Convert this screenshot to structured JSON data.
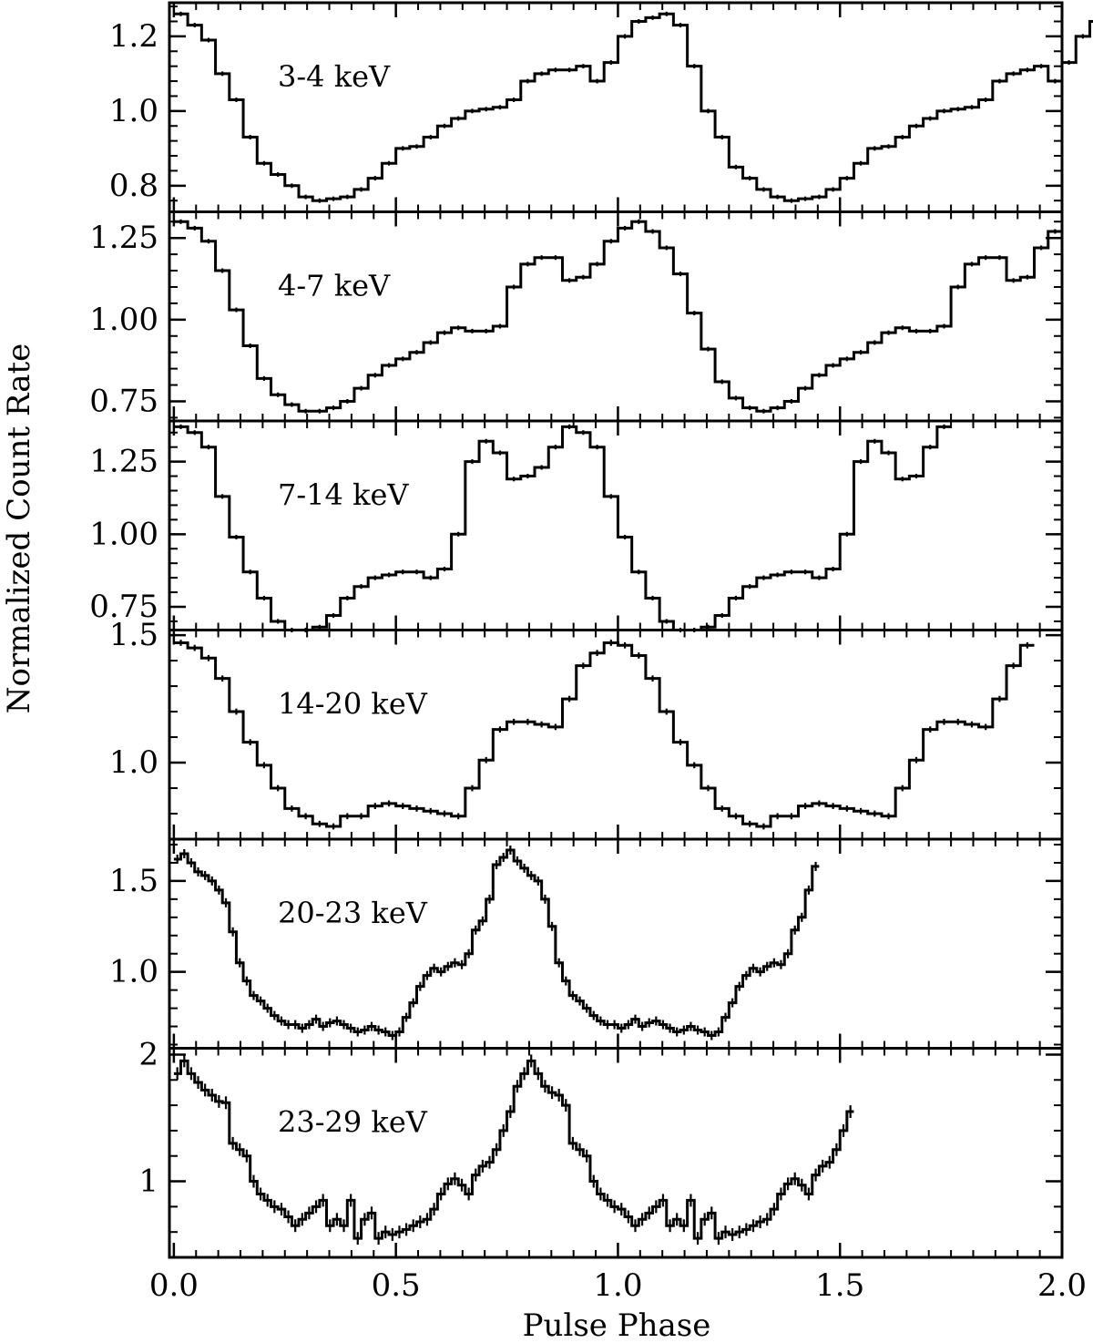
{
  "chart_data": {
    "type": "line",
    "style": "step-histogram with error bars",
    "xlabel": "Pulse Phase",
    "ylabel": "Normalized Count Rate",
    "xlim": [
      -0.01,
      2.0
    ],
    "xticks": [
      0.0,
      0.5,
      1.0,
      1.5,
      2.0
    ],
    "xtick_labels": [
      "0.0",
      "0.5",
      "1.0",
      "1.5",
      "2.0"
    ],
    "shared_x": true,
    "grid": false,
    "panels": [
      {
        "label": "3-4 keV",
        "ylim": [
          0.73,
          1.29
        ],
        "yticks": [
          0.8,
          1.0,
          1.2
        ],
        "ytick_labels": [
          "0.8",
          "1.0",
          "1.2"
        ],
        "bin_width": 0.03125,
        "values": [
          1.26,
          1.23,
          1.19,
          1.1,
          1.03,
          0.93,
          0.86,
          0.83,
          0.8,
          0.77,
          0.76,
          0.765,
          0.77,
          0.79,
          0.82,
          0.86,
          0.9,
          0.905,
          0.93,
          0.96,
          0.98,
          1.0,
          1.005,
          1.01,
          1.03,
          1.08,
          1.1,
          1.11,
          1.11,
          1.12,
          1.08,
          1.13,
          1.2,
          1.24,
          1.25,
          1.26,
          1.23,
          1.12,
          1.0,
          0.93,
          0.85,
          0.82,
          0.79,
          0.77,
          0.76,
          0.765,
          0.77,
          0.79,
          0.82,
          0.86,
          0.9,
          0.905,
          0.93,
          0.96,
          0.98,
          1.0,
          1.005,
          1.01,
          1.03,
          1.08,
          1.1,
          1.11,
          1.12,
          1.08,
          1.13,
          1.2,
          1.24,
          1.25
        ],
        "errors": 0.006
      },
      {
        "label": "4-7 keV",
        "ylim": [
          0.69,
          1.33
        ],
        "yticks": [
          0.75,
          1.0,
          1.25
        ],
        "ytick_labels": [
          "0.75",
          "1.00",
          "1.25"
        ],
        "bin_width": 0.03125,
        "values": [
          1.3,
          1.28,
          1.24,
          1.15,
          1.03,
          0.92,
          0.82,
          0.77,
          0.74,
          0.72,
          0.72,
          0.73,
          0.75,
          0.79,
          0.83,
          0.86,
          0.88,
          0.9,
          0.93,
          0.96,
          0.975,
          0.965,
          0.965,
          0.98,
          1.1,
          1.17,
          1.19,
          1.19,
          1.12,
          1.13,
          1.17,
          1.24,
          1.28,
          1.3,
          1.27,
          1.22,
          1.14,
          1.02,
          0.91,
          0.81,
          0.76,
          0.73,
          0.72,
          0.73,
          0.75,
          0.79,
          0.83,
          0.86,
          0.88,
          0.9,
          0.93,
          0.96,
          0.975,
          0.965,
          0.965,
          0.98,
          1.1,
          1.17,
          1.19,
          1.19,
          1.12,
          1.13,
          1.22,
          1.27
        ],
        "errors": 0.007
      },
      {
        "label": "7-14 keV",
        "ylim": [
          0.67,
          1.39
        ],
        "yticks": [
          0.75,
          1.0,
          1.25
        ],
        "ytick_labels": [
          "0.75",
          "1.00",
          "1.25"
        ],
        "bin_width": 0.03125,
        "values": [
          1.37,
          1.35,
          1.3,
          1.13,
          0.99,
          0.87,
          0.78,
          0.7,
          0.67,
          0.67,
          0.68,
          0.72,
          0.78,
          0.82,
          0.85,
          0.86,
          0.87,
          0.87,
          0.85,
          0.88,
          1.0,
          1.25,
          1.32,
          1.28,
          1.19,
          1.2,
          1.23,
          1.3,
          1.37,
          1.35,
          1.3,
          1.13,
          0.99,
          0.87,
          0.78,
          0.7,
          0.67,
          0.67,
          0.68,
          0.72,
          0.78,
          0.82,
          0.85,
          0.86,
          0.87,
          0.87,
          0.85,
          0.88,
          1.0,
          1.25,
          1.32,
          1.28,
          1.19,
          1.2,
          1.3,
          1.37
        ],
        "errors": 0.008
      },
      {
        "label": "14-20 keV",
        "ylim": [
          0.7,
          1.52
        ],
        "yticks": [
          1.0,
          1.5
        ],
        "ytick_labels": [
          "1.0",
          "1.5"
        ],
        "bin_width": 0.03125,
        "values": [
          1.47,
          1.45,
          1.41,
          1.33,
          1.2,
          1.08,
          0.99,
          0.9,
          0.82,
          0.79,
          0.76,
          0.75,
          0.79,
          0.79,
          0.83,
          0.84,
          0.83,
          0.82,
          0.81,
          0.8,
          0.79,
          0.9,
          1.01,
          1.13,
          1.16,
          1.16,
          1.15,
          1.14,
          1.25,
          1.38,
          1.43,
          1.47,
          1.46,
          1.42,
          1.33,
          1.2,
          1.08,
          0.99,
          0.9,
          0.82,
          0.79,
          0.76,
          0.75,
          0.79,
          0.79,
          0.83,
          0.84,
          0.83,
          0.82,
          0.81,
          0.8,
          0.79,
          0.9,
          1.01,
          1.13,
          1.16,
          1.16,
          1.15,
          1.14,
          1.25,
          1.38,
          1.46
        ],
        "errors": 0.012
      },
      {
        "label": "20-23 keV",
        "ylim": [
          0.58,
          1.73
        ],
        "yticks": [
          1.0,
          1.5
        ],
        "ytick_labels": [
          "1.0",
          "1.5"
        ],
        "bin_width": 0.015625,
        "values": [
          1.62,
          1.65,
          1.6,
          1.55,
          1.53,
          1.5,
          1.45,
          1.38,
          1.22,
          1.05,
          0.95,
          0.87,
          0.84,
          0.8,
          0.76,
          0.73,
          0.71,
          0.71,
          0.69,
          0.71,
          0.74,
          0.7,
          0.72,
          0.73,
          0.71,
          0.69,
          0.67,
          0.68,
          0.7,
          0.68,
          0.67,
          0.65,
          0.67,
          0.75,
          0.83,
          0.92,
          0.98,
          1.02,
          1.0,
          1.03,
          1.05,
          1.04,
          1.1,
          1.23,
          1.28,
          1.4,
          1.59,
          1.63,
          1.67,
          1.61,
          1.57,
          1.53,
          1.5,
          1.4,
          1.25,
          1.05,
          0.95,
          0.87,
          0.84,
          0.8,
          0.76,
          0.73,
          0.71,
          0.71,
          0.69,
          0.71,
          0.74,
          0.7,
          0.72,
          0.73,
          0.71,
          0.69,
          0.67,
          0.68,
          0.7,
          0.68,
          0.67,
          0.65,
          0.67,
          0.75,
          0.83,
          0.92,
          0.98,
          1.02,
          1.0,
          1.03,
          1.05,
          1.04,
          1.1,
          1.23,
          1.3,
          1.45,
          1.58
        ],
        "errors": 0.025
      },
      {
        "label": "23-29 keV",
        "ylim": [
          0.4,
          2.05
        ],
        "yticks": [
          1,
          2
        ],
        "ytick_labels": [
          "1",
          "2"
        ],
        "bin_width": 0.015625,
        "values": [
          1.85,
          1.95,
          1.85,
          1.78,
          1.72,
          1.68,
          1.63,
          1.62,
          1.3,
          1.25,
          1.2,
          1.0,
          0.9,
          0.85,
          0.8,
          0.78,
          0.72,
          0.65,
          0.7,
          0.75,
          0.8,
          0.85,
          0.65,
          0.7,
          0.65,
          0.85,
          0.55,
          0.7,
          0.75,
          0.55,
          0.6,
          0.58,
          0.6,
          0.62,
          0.65,
          0.68,
          0.7,
          0.78,
          0.9,
          0.98,
          1.02,
          0.97,
          0.9,
          1.05,
          1.12,
          1.15,
          1.25,
          1.4,
          1.55,
          1.75,
          1.85,
          1.95,
          1.85,
          1.75,
          1.7,
          1.68,
          1.6,
          1.3,
          1.25,
          1.2,
          1.0,
          0.9,
          0.85,
          0.8,
          0.78,
          0.72,
          0.65,
          0.7,
          0.75,
          0.8,
          0.85,
          0.65,
          0.7,
          0.65,
          0.85,
          0.55,
          0.7,
          0.75,
          0.55,
          0.6,
          0.58,
          0.6,
          0.62,
          0.65,
          0.68,
          0.7,
          0.78,
          0.9,
          0.98,
          1.02,
          0.97,
          0.9,
          1.05,
          1.12,
          1.15,
          1.25,
          1.4,
          1.55
        ],
        "errors": 0.05
      }
    ]
  }
}
